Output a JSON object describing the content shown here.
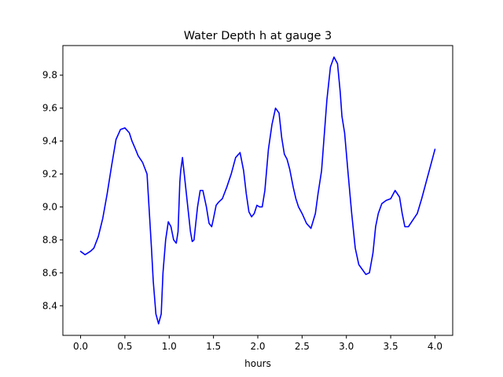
{
  "chart_data": {
    "type": "line",
    "title": "Water Depth h at gauge 3",
    "xlabel": "hours",
    "ylabel": "",
    "xlim": [
      -0.2,
      4.2
    ],
    "ylim": [
      8.22,
      9.98
    ],
    "xticks": [
      0.0,
      0.5,
      1.0,
      1.5,
      2.0,
      2.5,
      3.0,
      3.5,
      4.0
    ],
    "xtick_labels": [
      "0.0",
      "0.5",
      "1.0",
      "1.5",
      "2.0",
      "2.5",
      "3.0",
      "3.5",
      "4.0"
    ],
    "yticks": [
      8.4,
      8.6,
      8.8,
      9.0,
      9.2,
      9.4,
      9.6,
      9.8
    ],
    "ytick_labels": [
      "8.4",
      "8.6",
      "8.8",
      "9.0",
      "9.2",
      "9.4",
      "9.6",
      "9.8"
    ],
    "grid": false,
    "colors": {
      "line": "#0000ff"
    },
    "series": [
      {
        "x": [
          0.0,
          0.05,
          0.08,
          0.11,
          0.15,
          0.2,
          0.25,
          0.3,
          0.35,
          0.4,
          0.45,
          0.5,
          0.55,
          0.58,
          0.62,
          0.65,
          0.7,
          0.75,
          0.8,
          0.82,
          0.85,
          0.88,
          0.91,
          0.93,
          0.96,
          0.99,
          1.02,
          1.05,
          1.08,
          1.1,
          1.12,
          1.13,
          1.15,
          1.17,
          1.18,
          1.19,
          1.2,
          1.22,
          1.24,
          1.26,
          1.28,
          1.3,
          1.32,
          1.35,
          1.38,
          1.42,
          1.45,
          1.48,
          1.5,
          1.53,
          1.56,
          1.6,
          1.65,
          1.7,
          1.75,
          1.8,
          1.84,
          1.87,
          1.9,
          1.93,
          1.96,
          1.99,
          2.02,
          2.05,
          2.08,
          2.12,
          2.16,
          2.2,
          2.24,
          2.27,
          2.3,
          2.33,
          2.36,
          2.4,
          2.43,
          2.46,
          2.5,
          2.55,
          2.6,
          2.65,
          2.68,
          2.72,
          2.78,
          2.82,
          2.86,
          2.9,
          2.93,
          2.95,
          2.98,
          3.02,
          3.06,
          3.1,
          3.14,
          3.18,
          3.22,
          3.26,
          3.3,
          3.33,
          3.36,
          3.4,
          3.45,
          3.5,
          3.55,
          3.6,
          3.63,
          3.66,
          3.7,
          3.75,
          3.8,
          3.85,
          3.9,
          3.95,
          4.0
        ],
        "y": [
          8.73,
          8.71,
          8.72,
          8.73,
          8.75,
          8.82,
          8.93,
          9.08,
          9.25,
          9.41,
          9.47,
          9.48,
          9.45,
          9.4,
          9.35,
          9.31,
          9.27,
          9.2,
          8.75,
          8.55,
          8.35,
          8.29,
          8.35,
          8.6,
          8.8,
          8.91,
          8.88,
          8.8,
          8.78,
          8.85,
          9.15,
          9.22,
          9.3,
          9.2,
          9.15,
          9.1,
          9.05,
          8.95,
          8.85,
          8.79,
          8.8,
          8.9,
          9.0,
          9.1,
          9.1,
          9.0,
          8.9,
          8.88,
          8.93,
          9.01,
          9.03,
          9.05,
          9.12,
          9.2,
          9.3,
          9.33,
          9.22,
          9.08,
          8.97,
          8.94,
          8.96,
          9.01,
          9.0,
          9.0,
          9.1,
          9.35,
          9.5,
          9.6,
          9.57,
          9.42,
          9.32,
          9.29,
          9.23,
          9.12,
          9.05,
          9.0,
          8.96,
          8.9,
          8.87,
          8.96,
          9.08,
          9.22,
          9.65,
          9.85,
          9.91,
          9.87,
          9.7,
          9.55,
          9.45,
          9.2,
          8.96,
          8.75,
          8.65,
          8.62,
          8.59,
          8.6,
          8.72,
          8.88,
          8.96,
          9.02,
          9.04,
          9.05,
          9.1,
          9.06,
          8.96,
          8.88,
          8.88,
          8.92,
          8.96,
          9.05,
          9.15,
          9.25,
          9.35
        ]
      }
    ]
  }
}
